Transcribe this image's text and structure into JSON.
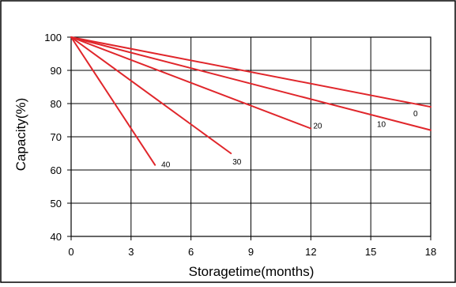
{
  "chart_data": {
    "type": "line",
    "xlabel": "Storagetime(months)",
    "ylabel": "Capacity(%)",
    "xlim": [
      0,
      18
    ],
    "ylim": [
      40,
      100
    ],
    "x_ticks": [
      "0",
      "3",
      "6",
      "9",
      "12",
      "15",
      "18"
    ],
    "y_ticks": [
      "40",
      "50",
      "60",
      "70",
      "80",
      "90",
      "100"
    ],
    "grid": true,
    "line_color": "#e0262b",
    "series": [
      {
        "name": "0",
        "x": [
          0,
          18
        ],
        "y": [
          100,
          79
        ]
      },
      {
        "name": "10",
        "x": [
          0,
          18
        ],
        "y": [
          100,
          72
        ]
      },
      {
        "name": "20",
        "x": [
          0,
          12
        ],
        "y": [
          100,
          72.5
        ]
      },
      {
        "name": "30",
        "x": [
          0,
          8
        ],
        "y": [
          100,
          65
        ]
      },
      {
        "name": "40",
        "x": [
          0,
          4.2
        ],
        "y": [
          100,
          61.5
        ]
      }
    ]
  }
}
